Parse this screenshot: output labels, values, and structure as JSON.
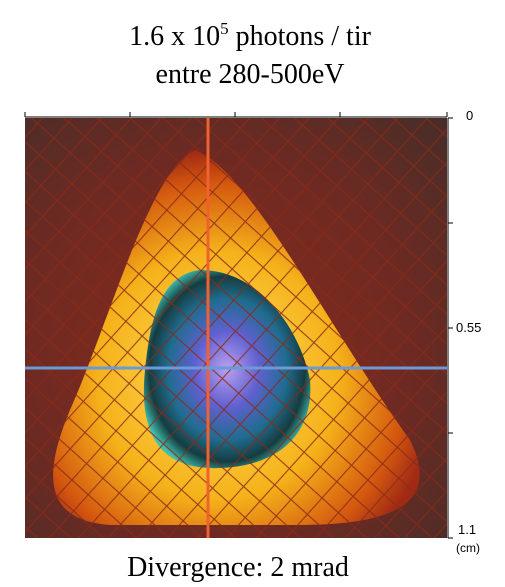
{
  "header": {
    "title_main": "1.6 x 10",
    "title_exponent": "5",
    "title_rest": " photons / tir",
    "subtitle": "entre 280-500eV"
  },
  "axis": {
    "labels": [
      "0",
      "0.55",
      "1.1"
    ],
    "unit": "(cm)"
  },
  "caption": "Divergence: 2 mrad"
}
